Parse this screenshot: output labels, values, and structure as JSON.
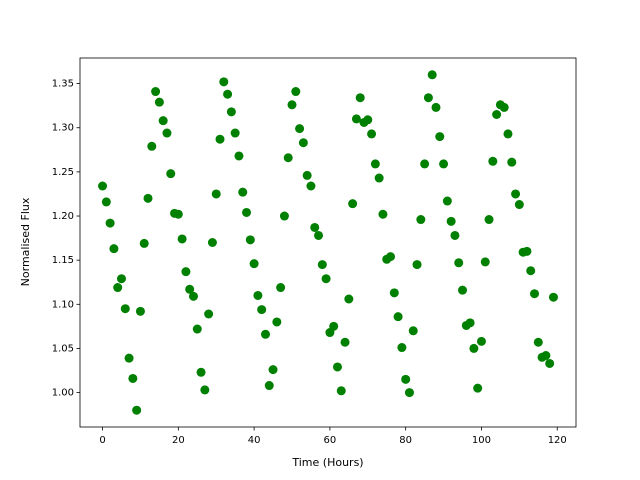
{
  "chart_data": {
    "type": "scatter",
    "xlabel": "Time (Hours)",
    "ylabel": "Normalised Flux",
    "color": "#008000",
    "x": [
      0,
      1,
      2,
      3,
      4,
      5,
      6,
      7,
      8,
      9,
      10,
      11,
      12,
      13,
      14,
      15,
      16,
      17,
      18,
      19,
      20,
      21,
      22,
      23,
      24,
      25,
      26,
      27,
      28,
      29,
      30,
      31,
      32,
      33,
      34,
      35,
      36,
      37,
      38,
      39,
      40,
      41,
      42,
      43,
      44,
      45,
      46,
      47,
      48,
      49,
      50,
      51,
      52,
      53,
      54,
      55,
      56,
      57,
      58,
      59,
      60,
      61,
      62,
      63,
      64,
      65,
      66,
      67,
      68,
      69,
      70,
      71,
      72,
      73,
      74,
      75,
      76,
      77,
      78,
      79,
      80,
      81,
      82,
      83,
      84,
      85,
      86,
      87,
      88,
      89,
      90,
      91,
      92,
      93,
      94,
      95,
      96,
      97,
      98,
      99,
      100,
      101,
      102,
      103,
      104,
      105,
      106,
      107,
      108,
      109,
      110,
      111,
      112,
      113,
      114,
      115,
      116,
      117,
      118,
      119
    ],
    "values": [
      1.234,
      1.216,
      1.192,
      1.163,
      1.119,
      1.129,
      1.095,
      1.039,
      1.016,
      0.98,
      1.092,
      1.169,
      1.22,
      1.279,
      1.341,
      1.329,
      1.308,
      1.294,
      1.248,
      1.203,
      1.202,
      1.174,
      1.137,
      1.117,
      1.109,
      1.072,
      1.023,
      1.003,
      1.089,
      1.17,
      1.225,
      1.287,
      1.352,
      1.338,
      1.318,
      1.294,
      1.268,
      1.227,
      1.204,
      1.173,
      1.146,
      1.11,
      1.094,
      1.066,
      1.008,
      1.026,
      1.08,
      1.119,
      1.2,
      1.266,
      1.326,
      1.341,
      1.299,
      1.283,
      1.246,
      1.234,
      1.187,
      1.178,
      1.145,
      1.129,
      1.068,
      1.075,
      1.029,
      1.002,
      1.057,
      1.106,
      1.214,
      1.31,
      1.334,
      1.306,
      1.309,
      1.293,
      1.259,
      1.243,
      1.202,
      1.151,
      1.154,
      1.113,
      1.086,
      1.051,
      1.015,
      1.0,
      1.07,
      1.145,
      1.196,
      1.259,
      1.334,
      1.36,
      1.323,
      1.29,
      1.259,
      1.217,
      1.194,
      1.178,
      1.147,
      1.116,
      1.076,
      1.079,
      1.05,
      1.005,
      1.058,
      1.148,
      1.196,
      1.262,
      1.315,
      1.326,
      1.323,
      1.293,
      1.261,
      1.225,
      1.213,
      1.159,
      1.16,
      1.138,
      1.112,
      1.057,
      1.04,
      1.042,
      1.033,
      1.108
    ],
    "xlim": [
      -5.95,
      124.95
    ],
    "xticks": [
      0,
      20,
      40,
      60,
      80,
      100,
      120
    ],
    "ylim": [
      0.961,
      1.379
    ],
    "yticks": [
      {
        "value": 1.0,
        "label": "1.00"
      },
      {
        "value": 1.05,
        "label": "1.05"
      },
      {
        "value": 1.1,
        "label": "1.10"
      },
      {
        "value": 1.15,
        "label": "1.15"
      },
      {
        "value": 1.2,
        "label": "1.20"
      },
      {
        "value": 1.25,
        "label": "1.25"
      },
      {
        "value": 1.3,
        "label": "1.30"
      },
      {
        "value": 1.35,
        "label": "1.35"
      }
    ]
  }
}
